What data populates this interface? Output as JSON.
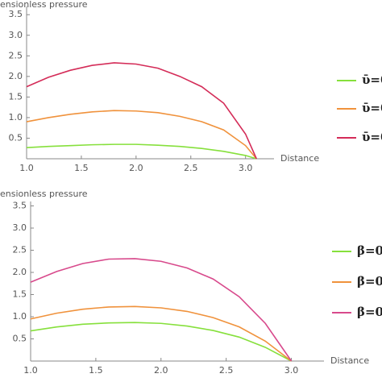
{
  "chart_data": [
    {
      "type": "line",
      "ylabel": "ensionless pressure",
      "xlabel": "Distance",
      "xlim": [
        1,
        3.26
      ],
      "ylim": [
        0,
        3.7
      ],
      "xticks": [
        {
          "value": 1,
          "label": "1.0"
        },
        1.5,
        {
          "value": 2,
          "label": "2.0"
        },
        2.5,
        {
          "value": 3,
          "label": "3.0"
        }
      ],
      "yticks": [
        0.5,
        {
          "value": 1,
          "label": "1.0"
        },
        1.5,
        {
          "value": 2,
          "label": "2.0"
        },
        2.5,
        {
          "value": 3,
          "label": "3.0"
        },
        3.5
      ],
      "x": [
        1.0,
        1.2,
        1.4,
        1.6,
        1.8,
        2.0,
        2.2,
        2.4,
        2.6,
        2.8,
        3.0,
        3.1
      ],
      "series": [
        {
          "name": "ῡ=0",
          "color": "#86e03c",
          "values": [
            0.27,
            0.3,
            0.32,
            0.34,
            0.35,
            0.35,
            0.33,
            0.3,
            0.25,
            0.18,
            0.08,
            0
          ]
        },
        {
          "name": "ῡ=0",
          "color": "#f0923c",
          "values": [
            0.9,
            1.0,
            1.08,
            1.14,
            1.17,
            1.16,
            1.12,
            1.03,
            0.9,
            0.7,
            0.32,
            0
          ]
        },
        {
          "name": "ῡ=0",
          "color": "#d42c58",
          "values": [
            1.75,
            1.98,
            2.15,
            2.27,
            2.33,
            2.3,
            2.2,
            2.0,
            1.75,
            1.35,
            0.6,
            0
          ]
        }
      ]
    },
    {
      "type": "line",
      "ylabel": "ensionless pressure",
      "xlabel": "Distance",
      "xlim": [
        1,
        3.25
      ],
      "ylim": [
        0,
        3.6
      ],
      "xticks": [
        {
          "value": 1,
          "label": "1.0"
        },
        1.5,
        {
          "value": 2,
          "label": "2.0"
        },
        2.5,
        {
          "value": 3,
          "label": "3.0"
        }
      ],
      "yticks": [
        0.5,
        {
          "value": 1,
          "label": "1.0"
        },
        1.5,
        {
          "value": 2,
          "label": "2.0"
        },
        2.5,
        {
          "value": 3,
          "label": "3.0"
        },
        3.5
      ],
      "x": [
        1.0,
        1.2,
        1.4,
        1.6,
        1.8,
        2.0,
        2.2,
        2.4,
        2.6,
        2.8,
        3.0
      ],
      "series": [
        {
          "name": "β=0",
          "color": "#86e03c",
          "values": [
            0.68,
            0.77,
            0.83,
            0.86,
            0.87,
            0.85,
            0.79,
            0.69,
            0.54,
            0.31,
            0
          ]
        },
        {
          "name": "β=0",
          "color": "#f0923c",
          "values": [
            0.95,
            1.08,
            1.17,
            1.22,
            1.23,
            1.2,
            1.12,
            0.98,
            0.77,
            0.45,
            0
          ]
        },
        {
          "name": "β=0",
          "color": "#d84a8c",
          "values": [
            1.78,
            2.02,
            2.2,
            2.3,
            2.31,
            2.25,
            2.1,
            1.85,
            1.45,
            0.85,
            0
          ]
        }
      ]
    }
  ]
}
